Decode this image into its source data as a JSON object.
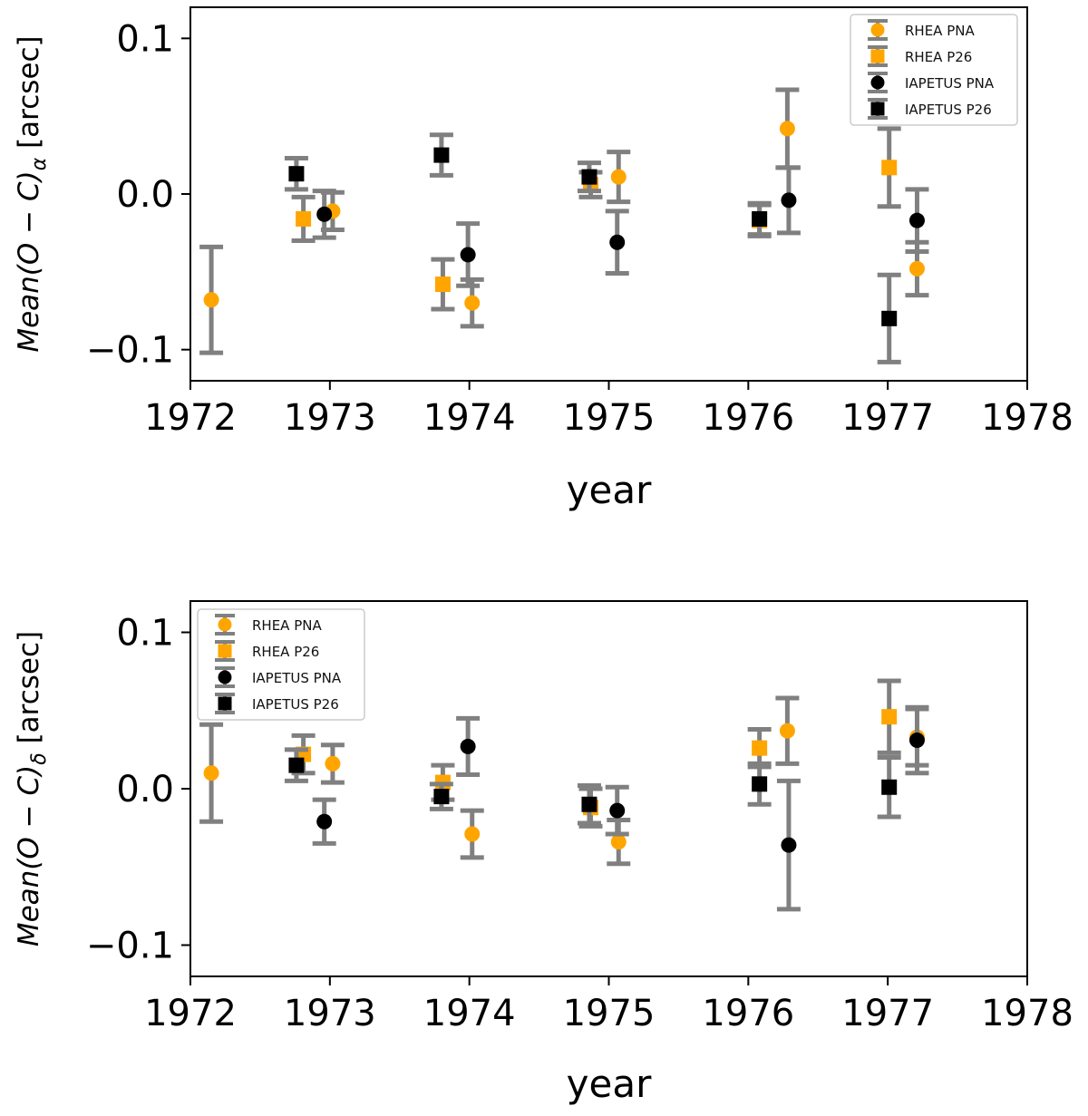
{
  "colors": {
    "rhea": "#ffa500",
    "iapetus": "#000000",
    "errorbar": "#808080",
    "axis": "#000000"
  },
  "chart_data": [
    {
      "type": "scatter",
      "title": "",
      "xlabel": "year",
      "ylabel": {
        "prefix": "Mean(O − C)",
        "subscript": "α",
        "unit": " [arcsec]"
      },
      "xlim": [
        1972,
        1978
      ],
      "ylim": [
        -0.12,
        0.12
      ],
      "xticks": [
        1972,
        1973,
        1974,
        1975,
        1976,
        1977,
        1978
      ],
      "xtick_labels": [
        "1972",
        "1973",
        "1974",
        "1975",
        "1976",
        "1977",
        "1978"
      ],
      "yticks": [
        0.1,
        0.0,
        -0.1
      ],
      "ytick_labels": [
        "0.1",
        "0.0",
        "−0.1"
      ],
      "legend_position": "top-right",
      "series": [
        {
          "name": "RHEA PNA",
          "marker": "circle",
          "color": "#ffa500",
          "points": [
            {
              "x": 1972.15,
              "y": -0.068,
              "err": 0.034
            },
            {
              "x": 1973.02,
              "y": -0.011,
              "err": 0.012
            },
            {
              "x": 1974.02,
              "y": -0.07,
              "err": 0.015
            },
            {
              "x": 1975.07,
              "y": 0.011,
              "err": 0.016
            },
            {
              "x": 1976.28,
              "y": 0.042,
              "err": 0.025
            },
            {
              "x": 1977.21,
              "y": -0.048,
              "err": 0.017
            }
          ]
        },
        {
          "name": "RHEA P26",
          "marker": "square",
          "color": "#ffa500",
          "points": [
            {
              "x": 1972.81,
              "y": -0.016,
              "err": 0.014
            },
            {
              "x": 1973.81,
              "y": -0.058,
              "err": 0.016
            },
            {
              "x": 1974.87,
              "y": 0.006,
              "err": 0.008
            },
            {
              "x": 1976.08,
              "y": -0.017,
              "err": 0.01
            },
            {
              "x": 1977.01,
              "y": 0.017,
              "err": 0.025
            }
          ]
        },
        {
          "name": "IAPETUS PNA",
          "marker": "circle",
          "color": "#000000",
          "points": [
            {
              "x": 1972.96,
              "y": -0.013,
              "err": 0.015
            },
            {
              "x": 1973.99,
              "y": -0.039,
              "err": 0.02
            },
            {
              "x": 1975.06,
              "y": -0.031,
              "err": 0.02
            },
            {
              "x": 1976.29,
              "y": -0.004,
              "err": 0.021
            },
            {
              "x": 1977.21,
              "y": -0.017,
              "err": 0.02
            }
          ]
        },
        {
          "name": "IAPETUS P26",
          "marker": "square",
          "color": "#000000",
          "points": [
            {
              "x": 1972.76,
              "y": 0.013,
              "err": 0.01
            },
            {
              "x": 1973.8,
              "y": 0.025,
              "err": 0.013
            },
            {
              "x": 1974.86,
              "y": 0.011,
              "err": 0.009
            },
            {
              "x": 1976.08,
              "y": -0.016,
              "err": 0.01
            },
            {
              "x": 1977.01,
              "y": -0.08,
              "err": 0.028
            }
          ]
        }
      ]
    },
    {
      "type": "scatter",
      "title": "",
      "xlabel": "year",
      "ylabel": {
        "prefix": "Mean(O − C)",
        "subscript": "δ",
        "unit": " [arcsec]"
      },
      "xlim": [
        1972,
        1978
      ],
      "ylim": [
        -0.12,
        0.12
      ],
      "xticks": [
        1972,
        1973,
        1974,
        1975,
        1976,
        1977,
        1978
      ],
      "xtick_labels": [
        "1972",
        "1973",
        "1974",
        "1975",
        "1976",
        "1977",
        "1978"
      ],
      "yticks": [
        0.1,
        0.0,
        -0.1
      ],
      "ytick_labels": [
        "0.1",
        "0.0",
        "−0.1"
      ],
      "legend_position": "top-left",
      "series": [
        {
          "name": "RHEA PNA",
          "marker": "circle",
          "color": "#ffa500",
          "points": [
            {
              "x": 1972.15,
              "y": 0.01,
              "err": 0.031
            },
            {
              "x": 1973.02,
              "y": 0.016,
              "err": 0.012
            },
            {
              "x": 1974.02,
              "y": -0.029,
              "err": 0.015
            },
            {
              "x": 1975.07,
              "y": -0.034,
              "err": 0.014
            },
            {
              "x": 1976.28,
              "y": 0.037,
              "err": 0.021
            },
            {
              "x": 1977.21,
              "y": 0.033,
              "err": 0.018
            }
          ]
        },
        {
          "name": "RHEA P26",
          "marker": "square",
          "color": "#ffa500",
          "points": [
            {
              "x": 1972.81,
              "y": 0.022,
              "err": 0.012
            },
            {
              "x": 1973.81,
              "y": 0.004,
              "err": 0.011
            },
            {
              "x": 1974.87,
              "y": -0.012,
              "err": 0.012
            },
            {
              "x": 1976.08,
              "y": 0.026,
              "err": 0.012
            },
            {
              "x": 1977.01,
              "y": 0.046,
              "err": 0.023
            }
          ]
        },
        {
          "name": "IAPETUS PNA",
          "marker": "circle",
          "color": "#000000",
          "points": [
            {
              "x": 1972.96,
              "y": -0.021,
              "err": 0.014
            },
            {
              "x": 1973.99,
              "y": 0.027,
              "err": 0.018
            },
            {
              "x": 1975.06,
              "y": -0.014,
              "err": 0.015
            },
            {
              "x": 1976.29,
              "y": -0.036,
              "err": 0.041
            },
            {
              "x": 1977.21,
              "y": 0.031,
              "err": 0.021
            }
          ]
        },
        {
          "name": "IAPETUS P26",
          "marker": "square",
          "color": "#000000",
          "points": [
            {
              "x": 1972.76,
              "y": 0.015,
              "err": 0.01
            },
            {
              "x": 1973.8,
              "y": -0.005,
              "err": 0.008
            },
            {
              "x": 1974.86,
              "y": -0.01,
              "err": 0.012
            },
            {
              "x": 1976.08,
              "y": 0.003,
              "err": 0.013
            },
            {
              "x": 1977.01,
              "y": 0.001,
              "err": 0.019
            }
          ]
        }
      ]
    }
  ]
}
